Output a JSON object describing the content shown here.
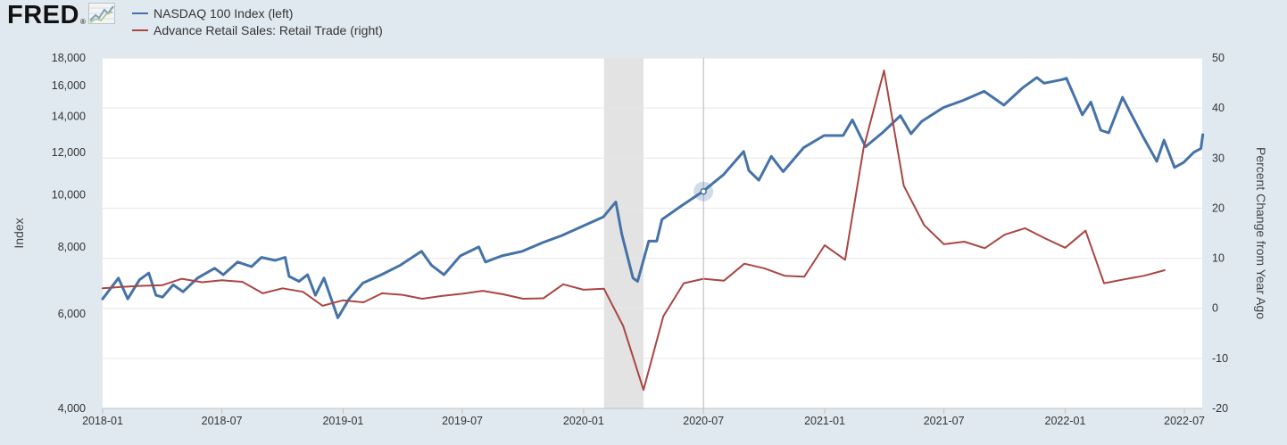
{
  "logo": {
    "text": "FRED",
    "reg": "®"
  },
  "chart_data": {
    "type": "line",
    "x_ticks": [
      "2018-01",
      "2018-07",
      "2019-01",
      "2019-07",
      "2020-01",
      "2020-07",
      "2021-01",
      "2021-07",
      "2022-01",
      "2022-07"
    ],
    "left_axis": {
      "label": "Index",
      "scale": "log",
      "ylim": [
        4000,
        18000
      ],
      "ticks": [
        4000,
        6000,
        8000,
        10000,
        12000,
        14000,
        16000,
        18000
      ],
      "tick_labels": [
        "4,000",
        "6,000",
        "8,000",
        "10,000",
        "12,000",
        "14,000",
        "16,000",
        "18,000"
      ]
    },
    "right_axis": {
      "label": "Percent Change from Year Ago",
      "ylim": [
        -20,
        50
      ],
      "ticks": [
        -20,
        -10,
        0,
        10,
        20,
        30,
        40,
        50
      ],
      "tick_labels": [
        "-20",
        "-10",
        "0",
        "10",
        "20",
        "30",
        "40",
        "50"
      ]
    },
    "recession_shading": {
      "start": "2020-02",
      "end": "2020-04"
    },
    "cursor_date": "2020-07",
    "series": [
      {
        "name": "NASDAQ 100 Index (left)",
        "axis": "left",
        "color": "#4572a7",
        "points": [
          [
            "2018-01-01",
            6400
          ],
          [
            "2018-01-25",
            7000
          ],
          [
            "2018-02-08",
            6400
          ],
          [
            "2018-02-26",
            6950
          ],
          [
            "2018-03-12",
            7150
          ],
          [
            "2018-03-23",
            6500
          ],
          [
            "2018-04-02",
            6450
          ],
          [
            "2018-04-18",
            6800
          ],
          [
            "2018-05-03",
            6600
          ],
          [
            "2018-05-25",
            7000
          ],
          [
            "2018-06-20",
            7300
          ],
          [
            "2018-07-03",
            7100
          ],
          [
            "2018-07-25",
            7500
          ],
          [
            "2018-08-15",
            7350
          ],
          [
            "2018-08-30",
            7650
          ],
          [
            "2018-09-20",
            7550
          ],
          [
            "2018-10-05",
            7650
          ],
          [
            "2018-10-11",
            7050
          ],
          [
            "2018-10-26",
            6900
          ],
          [
            "2018-11-08",
            7100
          ],
          [
            "2018-11-20",
            6500
          ],
          [
            "2018-12-03",
            7000
          ],
          [
            "2018-12-24",
            5900
          ],
          [
            "2019-01-10",
            6400
          ],
          [
            "2019-01-31",
            6850
          ],
          [
            "2019-02-28",
            7100
          ],
          [
            "2019-03-29",
            7400
          ],
          [
            "2019-04-30",
            7850
          ],
          [
            "2019-05-15",
            7400
          ],
          [
            "2019-06-03",
            7100
          ],
          [
            "2019-06-28",
            7700
          ],
          [
            "2019-07-26",
            8000
          ],
          [
            "2019-08-05",
            7500
          ],
          [
            "2019-08-30",
            7700
          ],
          [
            "2019-09-30",
            7850
          ],
          [
            "2019-10-31",
            8150
          ],
          [
            "2019-11-29",
            8400
          ],
          [
            "2019-12-31",
            8750
          ],
          [
            "2020-01-31",
            9100
          ],
          [
            "2020-02-19",
            9700
          ],
          [
            "2020-02-28",
            8450
          ],
          [
            "2020-03-16",
            7000
          ],
          [
            "2020-03-23",
            6900
          ],
          [
            "2020-04-09",
            8200
          ],
          [
            "2020-04-21",
            8200
          ],
          [
            "2020-04-29",
            9000
          ],
          [
            "2020-05-29",
            9550
          ],
          [
            "2020-06-30",
            10150
          ],
          [
            "2020-07-31",
            10900
          ],
          [
            "2020-08-31",
            12050
          ],
          [
            "2020-09-08",
            11100
          ],
          [
            "2020-09-23",
            10650
          ],
          [
            "2020-10-12",
            11800
          ],
          [
            "2020-10-30",
            11050
          ],
          [
            "2020-11-30",
            12250
          ],
          [
            "2020-12-31",
            12900
          ],
          [
            "2021-01-29",
            12900
          ],
          [
            "2021-02-12",
            13800
          ],
          [
            "2021-03-04",
            12300
          ],
          [
            "2021-03-31",
            13100
          ],
          [
            "2021-04-26",
            14050
          ],
          [
            "2021-05-12",
            13000
          ],
          [
            "2021-05-28",
            13700
          ],
          [
            "2021-06-30",
            14550
          ],
          [
            "2021-07-30",
            15000
          ],
          [
            "2021-08-31",
            15600
          ],
          [
            "2021-09-30",
            14700
          ],
          [
            "2021-10-29",
            15850
          ],
          [
            "2021-11-19",
            16550
          ],
          [
            "2021-11-30",
            16150
          ],
          [
            "2021-12-27",
            16400
          ],
          [
            "2022-01-03",
            16500
          ],
          [
            "2022-01-27",
            14100
          ],
          [
            "2022-02-09",
            14900
          ],
          [
            "2022-02-24",
            13200
          ],
          [
            "2022-03-08",
            13050
          ],
          [
            "2022-03-29",
            15200
          ],
          [
            "2022-04-29",
            12850
          ],
          [
            "2022-05-20",
            11550
          ],
          [
            "2022-05-31",
            12650
          ],
          [
            "2022-06-16",
            11250
          ],
          [
            "2022-06-30",
            11500
          ],
          [
            "2022-07-15",
            12000
          ],
          [
            "2022-07-26",
            12200
          ],
          [
            "2022-07-29",
            12950
          ]
        ]
      },
      {
        "name": "Advance Retail Sales: Retail Trade (right)",
        "axis": "right",
        "color": "#aa4643",
        "points": [
          [
            "2018-01-01",
            4.0
          ],
          [
            "2018-02-01",
            4.3
          ],
          [
            "2018-03-01",
            4.5
          ],
          [
            "2018-04-01",
            4.6
          ],
          [
            "2018-05-01",
            5.9
          ],
          [
            "2018-06-01",
            5.2
          ],
          [
            "2018-07-01",
            5.6
          ],
          [
            "2018-08-01",
            5.3
          ],
          [
            "2018-09-01",
            3.0
          ],
          [
            "2018-10-01",
            4.0
          ],
          [
            "2018-11-01",
            3.3
          ],
          [
            "2018-12-01",
            0.5
          ],
          [
            "2019-01-01",
            1.6
          ],
          [
            "2019-02-01",
            1.2
          ],
          [
            "2019-03-01",
            3.0
          ],
          [
            "2019-04-01",
            2.7
          ],
          [
            "2019-05-01",
            1.9
          ],
          [
            "2019-06-01",
            2.5
          ],
          [
            "2019-07-01",
            2.9
          ],
          [
            "2019-08-01",
            3.5
          ],
          [
            "2019-09-01",
            2.8
          ],
          [
            "2019-10-01",
            1.9
          ],
          [
            "2019-11-01",
            2.0
          ],
          [
            "2019-12-01",
            4.8
          ],
          [
            "2020-01-01",
            3.7
          ],
          [
            "2020-02-01",
            3.9
          ],
          [
            "2020-03-01",
            -3.5
          ],
          [
            "2020-04-01",
            -16.3
          ],
          [
            "2020-05-01",
            -1.6
          ],
          [
            "2020-06-01",
            5.0
          ],
          [
            "2020-07-01",
            5.9
          ],
          [
            "2020-08-01",
            5.5
          ],
          [
            "2020-09-01",
            8.9
          ],
          [
            "2020-10-01",
            8.0
          ],
          [
            "2020-11-01",
            6.5
          ],
          [
            "2020-12-01",
            6.3
          ],
          [
            "2021-01-01",
            12.6
          ],
          [
            "2021-02-01",
            9.7
          ],
          [
            "2021-03-01",
            32.0
          ],
          [
            "2021-04-01",
            47.5
          ],
          [
            "2021-05-01",
            24.5
          ],
          [
            "2021-06-01",
            16.6
          ],
          [
            "2021-07-01",
            12.8
          ],
          [
            "2021-08-01",
            13.3
          ],
          [
            "2021-09-01",
            12.0
          ],
          [
            "2021-10-01",
            14.7
          ],
          [
            "2021-11-01",
            16.0
          ],
          [
            "2021-12-01",
            14.0
          ],
          [
            "2022-01-01",
            12.1
          ],
          [
            "2022-02-01",
            15.5
          ],
          [
            "2022-03-01",
            5.0
          ],
          [
            "2022-04-01",
            5.8
          ],
          [
            "2022-05-01",
            6.5
          ],
          [
            "2022-06-01",
            7.6
          ]
        ]
      }
    ]
  }
}
